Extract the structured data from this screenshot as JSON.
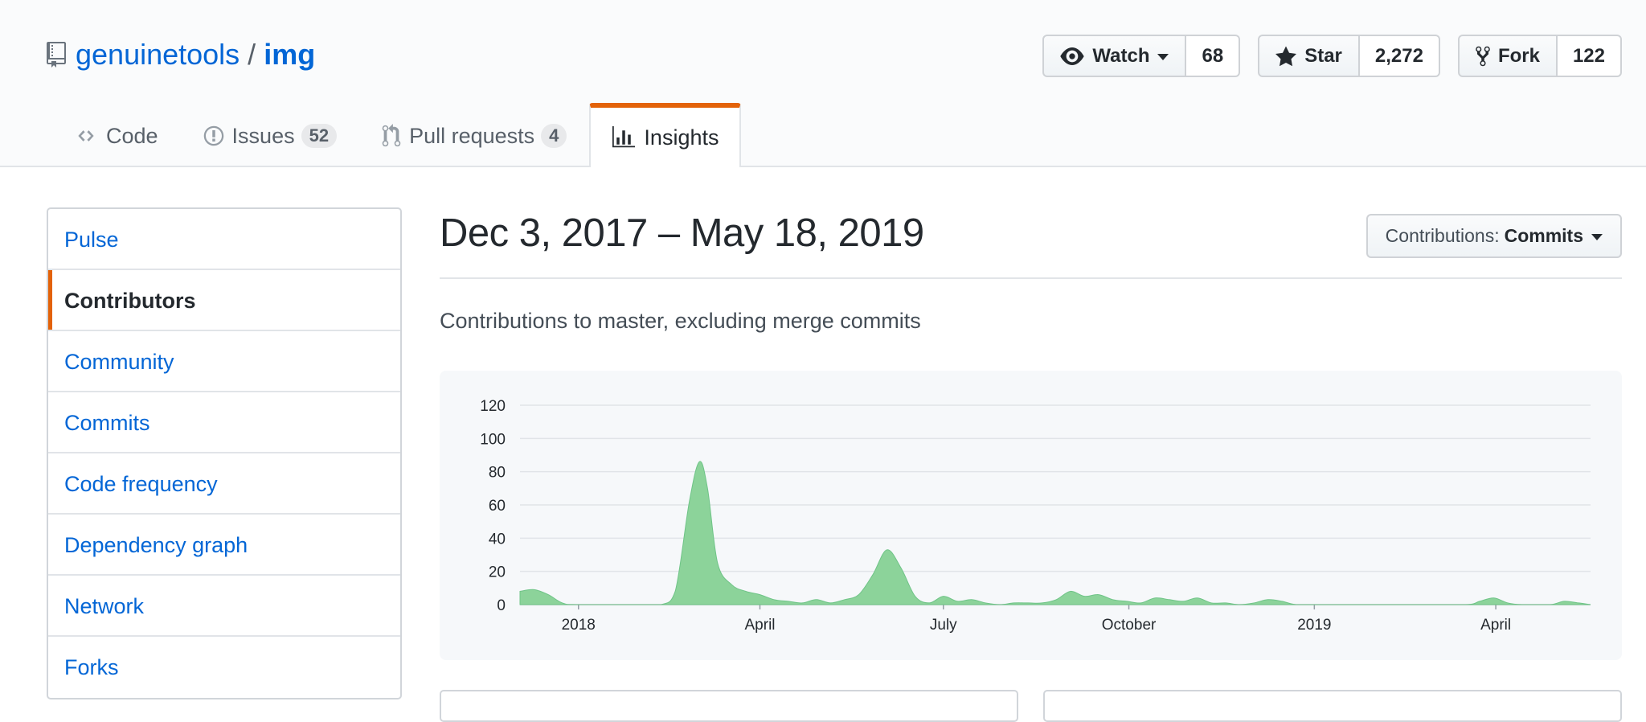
{
  "repo": {
    "owner": "genuinetools",
    "separator": "/",
    "name": "img"
  },
  "actions": {
    "watch": {
      "label": "Watch",
      "count": "68"
    },
    "star": {
      "label": "Star",
      "count": "2,272"
    },
    "fork": {
      "label": "Fork",
      "count": "122"
    }
  },
  "tabs": [
    {
      "label": "Code",
      "icon": "code-icon"
    },
    {
      "label": "Issues",
      "icon": "issue-icon",
      "count": "52"
    },
    {
      "label": "Pull requests",
      "icon": "pull-request-icon",
      "count": "4"
    },
    {
      "label": "Insights",
      "icon": "graph-icon",
      "selected": true
    }
  ],
  "menu": [
    {
      "label": "Pulse"
    },
    {
      "label": "Contributors",
      "selected": true
    },
    {
      "label": "Community"
    },
    {
      "label": "Commits"
    },
    {
      "label": "Code frequency"
    },
    {
      "label": "Dependency graph"
    },
    {
      "label": "Network"
    },
    {
      "label": "Forks"
    }
  ],
  "main": {
    "date_range": "Dec 3, 2017 – May 18, 2019",
    "contributions_label": "Contributions:",
    "contributions_value": "Commits",
    "subtitle": "Contributions to master, excluding merge commits"
  },
  "colors": {
    "accent": "#e36209",
    "link": "#0366d6",
    "chart_fill": "#8cd39a",
    "chart_stroke": "#6fc487"
  },
  "chart_data": {
    "type": "area",
    "title": "",
    "xlabel": "",
    "ylabel": "",
    "ylim": [
      0,
      120
    ],
    "xlim": [
      "2017-12-03",
      "2019-05-18"
    ],
    "y_ticks": [
      0,
      20,
      40,
      60,
      80,
      100,
      120
    ],
    "x_ticks": [
      {
        "label": "2018",
        "date": "2018-01-01"
      },
      {
        "label": "April",
        "date": "2018-04-01"
      },
      {
        "label": "July",
        "date": "2018-07-01"
      },
      {
        "label": "October",
        "date": "2018-10-01"
      },
      {
        "label": "2019",
        "date": "2019-01-01"
      },
      {
        "label": "April",
        "date": "2019-04-01"
      }
    ],
    "grid": true,
    "legend": "none",
    "series": [
      {
        "points": [
          [
            "2017-12-03",
            8
          ],
          [
            "2017-12-10",
            9
          ],
          [
            "2017-12-17",
            6
          ],
          [
            "2017-12-24",
            1
          ],
          [
            "2017-12-31",
            0
          ],
          [
            "2018-01-28",
            0
          ],
          [
            "2018-02-11",
            0
          ],
          [
            "2018-02-18",
            8
          ],
          [
            "2018-02-25",
            62
          ],
          [
            "2018-03-02",
            86
          ],
          [
            "2018-03-06",
            70
          ],
          [
            "2018-03-11",
            25
          ],
          [
            "2018-03-18",
            12
          ],
          [
            "2018-03-25",
            8
          ],
          [
            "2018-04-01",
            6
          ],
          [
            "2018-04-08",
            3
          ],
          [
            "2018-04-15",
            2
          ],
          [
            "2018-04-22",
            1
          ],
          [
            "2018-04-29",
            3
          ],
          [
            "2018-05-06",
            1
          ],
          [
            "2018-05-13",
            3
          ],
          [
            "2018-05-20",
            6
          ],
          [
            "2018-05-27",
            18
          ],
          [
            "2018-06-03",
            33
          ],
          [
            "2018-06-10",
            22
          ],
          [
            "2018-06-17",
            5
          ],
          [
            "2018-06-24",
            1
          ],
          [
            "2018-07-01",
            5
          ],
          [
            "2018-07-08",
            2
          ],
          [
            "2018-07-15",
            3
          ],
          [
            "2018-07-22",
            1
          ],
          [
            "2018-07-29",
            0
          ],
          [
            "2018-08-05",
            1
          ],
          [
            "2018-08-12",
            1
          ],
          [
            "2018-08-19",
            1
          ],
          [
            "2018-08-26",
            3
          ],
          [
            "2018-09-02",
            8
          ],
          [
            "2018-09-09",
            5
          ],
          [
            "2018-09-16",
            6
          ],
          [
            "2018-09-23",
            3
          ],
          [
            "2018-09-30",
            2
          ],
          [
            "2018-10-07",
            1
          ],
          [
            "2018-10-14",
            4
          ],
          [
            "2018-10-21",
            3
          ],
          [
            "2018-10-28",
            2
          ],
          [
            "2018-11-04",
            4
          ],
          [
            "2018-11-11",
            1
          ],
          [
            "2018-11-18",
            1
          ],
          [
            "2018-11-25",
            0
          ],
          [
            "2018-12-02",
            1
          ],
          [
            "2018-12-09",
            3
          ],
          [
            "2018-12-16",
            2
          ],
          [
            "2018-12-23",
            0
          ],
          [
            "2019-01-06",
            0
          ],
          [
            "2019-02-17",
            0
          ],
          [
            "2019-03-17",
            0
          ],
          [
            "2019-03-24",
            2
          ],
          [
            "2019-03-31",
            4
          ],
          [
            "2019-04-07",
            1
          ],
          [
            "2019-04-14",
            0
          ],
          [
            "2019-04-28",
            0
          ],
          [
            "2019-05-05",
            2
          ],
          [
            "2019-05-12",
            1
          ],
          [
            "2019-05-18",
            0
          ]
        ]
      }
    ]
  }
}
